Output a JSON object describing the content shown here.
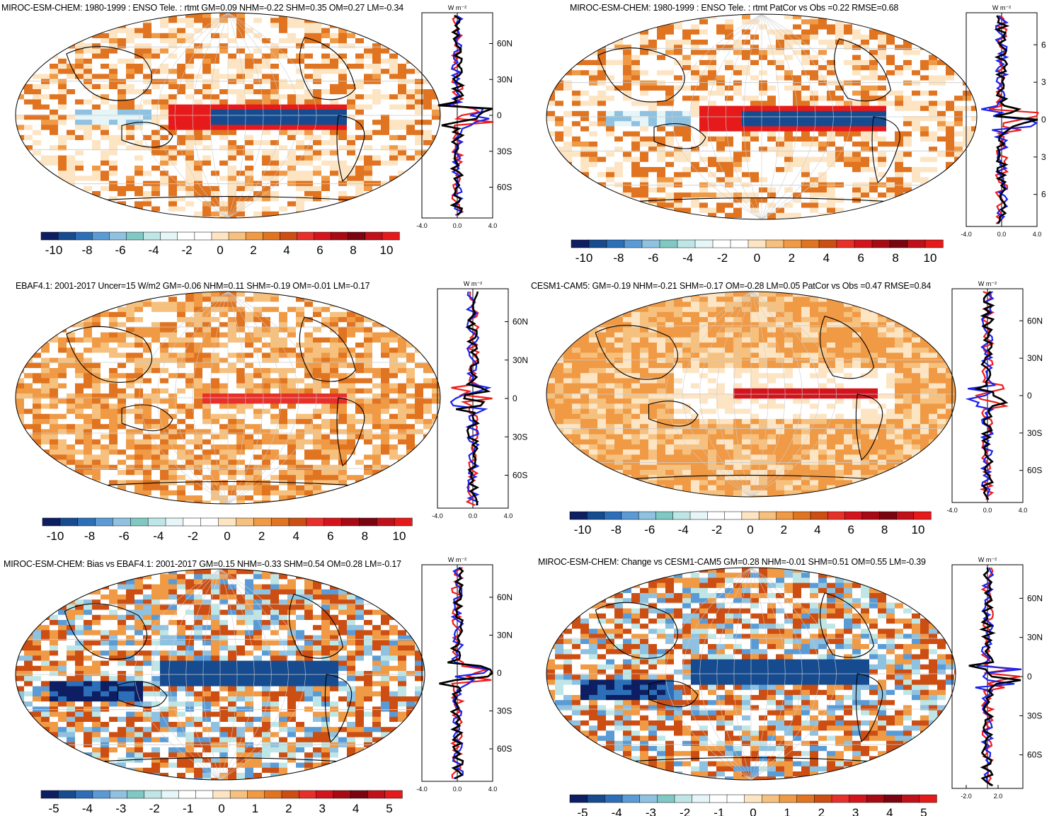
{
  "colors": {
    "blue_scale": [
      "#0d1f62",
      "#174b8f",
      "#2c6fb8",
      "#5b9bd5",
      "#8fc1e0",
      "#7fc8c3",
      "#bfe6e6",
      "#e6f5f7"
    ],
    "red_scale": [
      "#fde5c4",
      "#f6c17e",
      "#f09a45",
      "#e07420",
      "#cc4e12",
      "#e8302a",
      "#d4141d",
      "#a80a14",
      "#7a0510",
      "#c0111a",
      "#e61a1a"
    ],
    "white": "#ffffff",
    "line_red": "#ee1c1c",
    "line_blue": "#1a22ee",
    "line_black": "#000000"
  },
  "units_label": "W m⁻²",
  "panels": [
    {
      "id": "p1",
      "title": "MIROC-ESM-CHEM: 1980-1999 : ENSO Tele. : rtmt GM=0.09 NHM=-0.22 SHM=0.35 OM=0.27 LM=-0.34",
      "colorbar_labels": [
        "-10",
        "-8",
        "-6",
        "-4",
        "-2",
        "0",
        "2",
        "4",
        "6",
        "8",
        "10"
      ],
      "profile_x_labels": [
        "-4.0",
        "0.0",
        "4.0"
      ],
      "profile_y_labels": [
        "60N",
        "30N",
        "0",
        "30S",
        "60S"
      ]
    },
    {
      "id": "p2",
      "title": "MIROC-ESM-CHEM: 1980-1999 : ENSO Tele. : rtmt PatCor vs Obs =0.22 RMSE=0.68",
      "colorbar_labels": [
        "-10",
        "-8",
        "-6",
        "-4",
        "-2",
        "0",
        "2",
        "4",
        "6",
        "8",
        "10"
      ],
      "profile_x_labels": [
        "-4.0",
        "0.0",
        "4.0"
      ],
      "profile_y_labels": [
        "6",
        "3",
        "0",
        "3",
        "6"
      ]
    },
    {
      "id": "p3",
      "title": "EBAF4.1: 2001-2017 Uncer=15 W/m2 GM=-0.06 NHM=0.11 SHM=-0.19 OM=-0.01 LM=-0.17",
      "colorbar_labels": [
        "-10",
        "-8",
        "-6",
        "-4",
        "-2",
        "0",
        "2",
        "4",
        "6",
        "8",
        "10"
      ],
      "profile_x_labels": [
        "-4.0",
        "0.0",
        "4.0"
      ],
      "profile_y_labels": [
        "60N",
        "30N",
        "0",
        "30S",
        "60S"
      ]
    },
    {
      "id": "p4",
      "title": "CESM1-CAM5: GM=-0.19 NHM=-0.21 SHM=-0.17 OM=-0.28 LM=0.05 PatCor vs Obs =0.47 RMSE=0.84",
      "colorbar_labels": [
        "-10",
        "-8",
        "-6",
        "-4",
        "-2",
        "0",
        "2",
        "4",
        "6",
        "8",
        "10"
      ],
      "profile_x_labels": [
        "-4.0",
        "0.0",
        "4.0"
      ],
      "profile_y_labels": [
        "60N",
        "30N",
        "0",
        "30S",
        "60S"
      ]
    },
    {
      "id": "p5",
      "title": "MIROC-ESM-CHEM: Bias vs EBAF4.1: 2001-2017 GM=0.15 NHM=-0.33 SHM=0.54 OM=0.28 LM=-0.17",
      "colorbar_labels": [
        "-5",
        "-4",
        "-3",
        "-2",
        "-1",
        "0",
        "1",
        "2",
        "3",
        "4",
        "5"
      ],
      "profile_x_labels": [
        "-4.0",
        "0.0",
        "4.0"
      ],
      "profile_y_labels": [
        "60N",
        "30N",
        "0",
        "30S",
        "60S"
      ]
    },
    {
      "id": "p6",
      "title": "MIROC-ESM-CHEM: Change vs CESM1-CAM5 GM=0.28 NHM=-0.01 SHM=0.51 OM=0.55 LM=-0.39",
      "colorbar_labels": [
        "-5",
        "-4",
        "-3",
        "-2",
        "-1",
        "0",
        "1",
        "2",
        "3",
        "4",
        "5"
      ],
      "profile_x_labels": [
        "-2.0",
        "2.0"
      ],
      "profile_y_labels": [
        "60N",
        "30N",
        "0",
        "30S",
        "60S"
      ]
    }
  ]
}
